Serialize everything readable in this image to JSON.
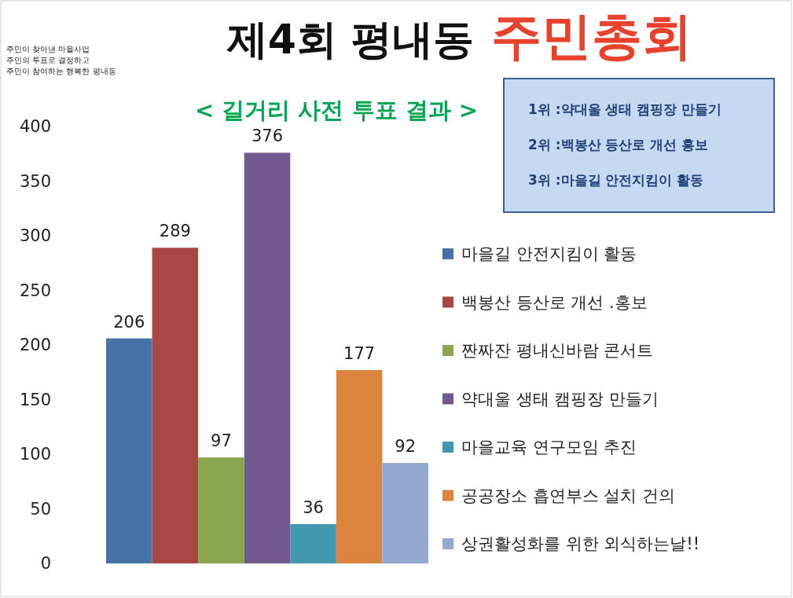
{
  "chart_data": {
    "type": "bar",
    "title": "제4회 평내동 주민총회",
    "subtitle": "< 길거리 사전 투표 결과 >",
    "categories": [
      null
    ],
    "series": [
      {
        "name": "마을길 안전지킴이 활동",
        "color": "#4572a7",
        "values": [
          206
        ]
      },
      {
        "name": "백봉산 등산로 개선 .홍보",
        "color": "#aa4643",
        "values": [
          289
        ]
      },
      {
        "name": "짠짜잔 평내신바람 콘서트",
        "color": "#89a54e",
        "values": [
          97
        ]
      },
      {
        "name": "약대울 생태 캠핑장 만들기",
        "color": "#71588f",
        "values": [
          376
        ]
      },
      {
        "name": "마을교육 연구모임 추진",
        "color": "#4198af",
        "values": [
          36
        ]
      },
      {
        "name": "공공장소 흡연부스 설치 건의",
        "color": "#db843d",
        "values": [
          177
        ]
      },
      {
        "name": "상권활성화를 위한 외식하는날!!",
        "color": "#93a9cf",
        "values": [
          92
        ]
      }
    ],
    "ylim": [
      0,
      400
    ],
    "yticks": [
      0,
      50,
      100,
      150,
      200,
      250,
      300,
      350,
      400
    ],
    "grid": false,
    "legend": "right",
    "data_labels": true,
    "tick_labels": "y",
    "annotations": [
      "주민이 찾아낸 마을사업",
      "주민의 투표로 결정하고",
      "주민이 참여하는 행복한 평내동",
      "1위 :약대울 생태 캠핑장 만들기",
      "2위 :백봉산 등산로 개선 홍보",
      "3위 :마을길 안전지킴이 활동"
    ]
  }
}
